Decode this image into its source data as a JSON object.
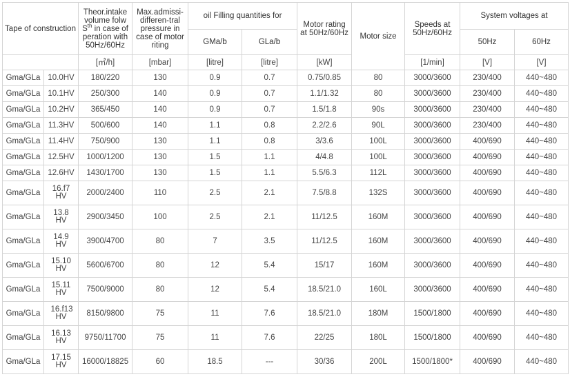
{
  "header": {
    "construction": "Tape of construction",
    "intake": [
      "Theor.intake volume folw S",
      "th",
      " in case of peration with 50Hz/60Hz"
    ],
    "pressure": "Max.admissi-differen-tral pressure in case of motor riting",
    "oil": "oil Filling quantities for",
    "oil_gma": "GMa/b",
    "oil_gla": "GLa/b",
    "motor_rating": "Motor rating at 50Hz/60Hz",
    "motor_size": "Motor size",
    "speeds": "Speeds at 50Hz/60Hz",
    "voltages": "System voltages at",
    "v50": "50Hz",
    "v60": "60Hz"
  },
  "units": [
    "[㎥/h]",
    "[mbar]",
    "[litre]",
    "[litre]",
    "[kW]",
    "[1/min]",
    "[V]",
    "[V]"
  ],
  "table": {
    "rows": [
      [
        "Gma/GLa",
        "10.0HV",
        "180/220",
        "130",
        "0.9",
        "0.7",
        "0.75/0.85",
        "80",
        "3000/3600",
        "230/400",
        "440~480"
      ],
      [
        "Gma/GLa",
        "10.1HV",
        "250/300",
        "140",
        "0.9",
        "0.7",
        "1.1/1.32",
        "80",
        "3000/3600",
        "230/400",
        "440~480"
      ],
      [
        "Gma/GLa",
        "10.2HV",
        "365/450",
        "140",
        "0.9",
        "0.7",
        "1.5/1.8",
        "90s",
        "3000/3600",
        "230/400",
        "440~480"
      ],
      [
        "Gma/GLa",
        "11.3HV",
        "500/600",
        "140",
        "1.1",
        "0.8",
        "2.2/2.6",
        "90L",
        "3000/3600",
        "230/400",
        "440~480"
      ],
      [
        "Gma/GLa",
        "11.4HV",
        "750/900",
        "130",
        "1.1",
        "0.8",
        "3/3.6",
        "100L",
        "3000/3600",
        "400/690",
        "440~480"
      ],
      [
        "Gma/GLa",
        "12.5HV",
        "1000/1200",
        "130",
        "1.5",
        "1.1",
        "4/4.8",
        "100L",
        "3000/3600",
        "400/690",
        "440~480"
      ],
      [
        "Gma/GLa",
        "12.6HV",
        "1430/1700",
        "130",
        "1.5",
        "1.1",
        "5.5/6.3",
        "112L",
        "3000/3600",
        "400/690",
        "440~480"
      ],
      [
        "Gma/GLa",
        "16.f7 HV",
        "2000/2400",
        "110",
        "2.5",
        "2.1",
        "7.5/8.8",
        "132S",
        "3000/3600",
        "400/690",
        "440~480"
      ],
      [
        "Gma/GLa",
        "13.8 HV",
        "2900/3450",
        "100",
        "2.5",
        "2.1",
        "11/12.5",
        "160M",
        "3000/3600",
        "400/690",
        "440~480"
      ],
      [
        "Gma/GLa",
        "14.9 HV",
        "3900/4700",
        "80",
        "7",
        "3.5",
        "11/12.5",
        "160M",
        "3000/3600",
        "400/690",
        "440~480"
      ],
      [
        "Gma/GLa",
        "15.10 HV",
        "5600/6700",
        "80",
        "12",
        "5.4",
        "15/17",
        "160M",
        "3000/3600",
        "400/690",
        "440~480"
      ],
      [
        "Gma/GLa",
        "15.11 HV",
        "7500/9000",
        "80",
        "12",
        "5.4",
        "18.5/21.0",
        "160L",
        "3000/3600",
        "400/690",
        "440~480"
      ],
      [
        "Gma/GLa",
        "16.f13 HV",
        "8150/9800",
        "75",
        "11",
        "7.6",
        "18.5/21.0",
        "180M",
        "1500/1800",
        "400/690",
        "440~480"
      ],
      [
        "Gma/GLa",
        "16.13 HV",
        "9750/11700",
        "75",
        "11",
        "7.6",
        "22/25",
        "180L",
        "1500/1800",
        "400/690",
        "440~480"
      ],
      [
        "Gma/GLa",
        "17.15 HV",
        "16000/18825",
        "60",
        "18.5",
        "---",
        "30/36",
        "200L",
        "1500/1800*",
        "400/690",
        "440~480"
      ]
    ]
  }
}
